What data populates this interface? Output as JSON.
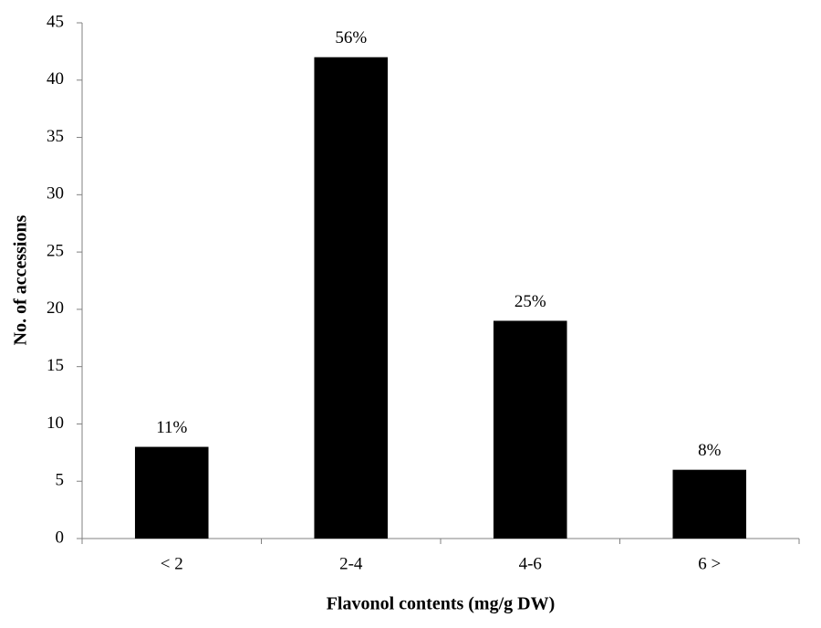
{
  "chart_data": {
    "type": "bar",
    "x_label": "Flavonol contents (mg/g DW)",
    "y_label": "No. of accessions",
    "categories": [
      "< 2",
      "2-4",
      "4-6",
      "6 >"
    ],
    "values": [
      8,
      42,
      19,
      6
    ],
    "annotations": [
      "11%",
      "56%",
      "25%",
      "8%"
    ],
    "color": "#000000",
    "ylim": [
      0,
      45
    ],
    "yticks": [
      0,
      5,
      10,
      15,
      20,
      25,
      30,
      35,
      40,
      45
    ],
    "grid": false
  }
}
